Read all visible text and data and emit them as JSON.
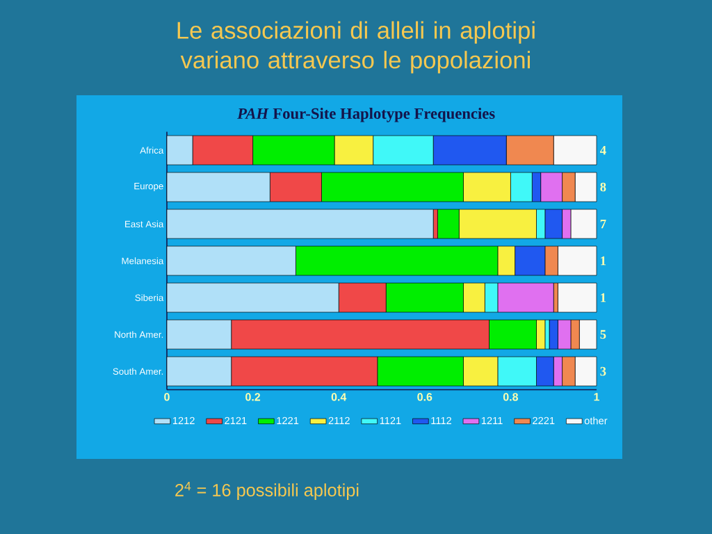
{
  "chart_data": {
    "type": "bar",
    "orientation": "horizontal",
    "stacked": true,
    "title": "Le associazioni di alleli in aplotipi variano attraverso le popolazioni",
    "subtitle": "*PAH* Four-Site Haplotype Frequencies",
    "categories": [
      "Africa",
      "Europe",
      "East Asia",
      "Melanesia",
      "Siberia",
      "North Amer.",
      "South Amer."
    ],
    "series": [
      {
        "name": "1212",
        "color": "#b0e0f8",
        "values": [
          0.06,
          0.24,
          0.62,
          0.3,
          0.4,
          0.15,
          0.15
        ]
      },
      {
        "name": "2121",
        "color": "#f04848",
        "values": [
          0.14,
          0.12,
          0.01,
          0,
          0.11,
          0.6,
          0.34
        ]
      },
      {
        "name": "1221",
        "color": "#00ee00",
        "values": [
          0.19,
          0.33,
          0.05,
          0.47,
          0.18,
          0.11,
          0.2
        ]
      },
      {
        "name": "2112",
        "color": "#f8f040",
        "values": [
          0.09,
          0.11,
          0.18,
          0.04,
          0.05,
          0.02,
          0.08
        ]
      },
      {
        "name": "1121",
        "color": "#40f8f8",
        "values": [
          0.14,
          0.05,
          0.02,
          0,
          0.03,
          0.01,
          0.09
        ]
      },
      {
        "name": "1112",
        "color": "#2058f0",
        "values": [
          0.17,
          0.02,
          0.04,
          0.07,
          0,
          0.02,
          0.04
        ]
      },
      {
        "name": "1211",
        "color": "#e070f0",
        "values": [
          0,
          0.05,
          0.02,
          0,
          0.13,
          0.03,
          0.02
        ]
      },
      {
        "name": "2221",
        "color": "#f08850",
        "values": [
          0.11,
          0.03,
          0,
          0.03,
          0.01,
          0.02,
          0.03
        ]
      },
      {
        "name": "other",
        "color": "#f8f8f8",
        "values": [
          0.1,
          0.05,
          0.06,
          0.09,
          0.09,
          0.04,
          0.05
        ]
      }
    ],
    "xlim": [
      0,
      1
    ],
    "xticks": [
      0,
      0.2,
      0.4,
      0.6,
      0.8,
      1
    ],
    "legend": "bottom",
    "annotations": [
      "4",
      "8",
      "7",
      "1",
      "1",
      "5",
      "3",
      "2$^{4}$ = 16 possibili aplotipi"
    ]
  }
}
